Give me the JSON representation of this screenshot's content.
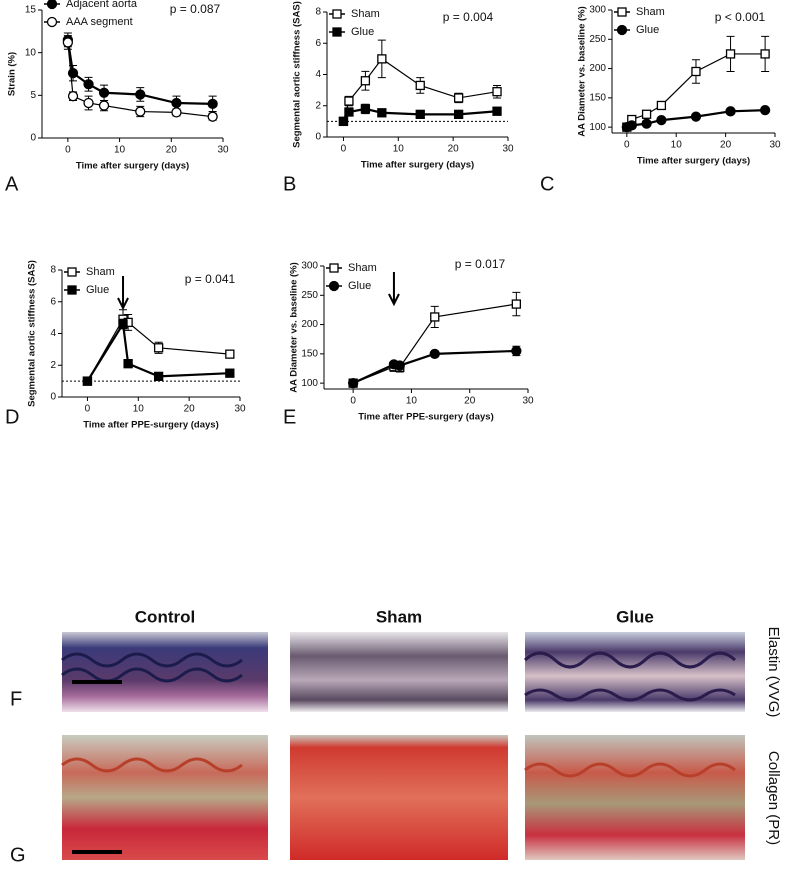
{
  "chart_data": [
    {
      "type": "line",
      "panel": "A",
      "annotation": "p = 0.087",
      "xlabel": "Time after surgery (days)",
      "ylabel": "Strain (%)",
      "x": [
        0,
        1,
        4,
        7,
        14,
        21,
        28
      ],
      "xlim": [
        -5,
        30
      ],
      "xticks": [
        0,
        10,
        20,
        30
      ],
      "ylim": [
        0,
        15
      ],
      "yticks": [
        0,
        5,
        10,
        15
      ],
      "series": [
        {
          "name": "Adjacent aorta",
          "color": "#000000",
          "marker": "circle",
          "filled": true,
          "values": [
            11.5,
            7.6,
            6.3,
            5.3,
            5.1,
            4.1,
            4.0
          ],
          "errors": [
            0.8,
            0.9,
            0.8,
            0.9,
            0.8,
            0.8,
            0.9
          ]
        },
        {
          "name": "AAA segment",
          "color": "#000000",
          "marker": "circle",
          "filled": false,
          "values": [
            11.2,
            4.9,
            4.1,
            3.8,
            3.1,
            3.0,
            2.5
          ],
          "errors": [
            0.8,
            0.5,
            0.8,
            0.6,
            0.6,
            0.4,
            0.4
          ]
        }
      ]
    },
    {
      "type": "line",
      "panel": "B",
      "annotation": "p = 0.004",
      "xlabel": "Time after surgery (days)",
      "ylabel": "Segmental aortic stiffness (SAS)",
      "x": [
        0,
        1,
        4,
        7,
        14,
        21,
        28
      ],
      "xlim": [
        -3,
        30
      ],
      "xticks": [
        0,
        10,
        20,
        30
      ],
      "ylim": [
        0,
        8
      ],
      "yticks": [
        0,
        2,
        4,
        6,
        8
      ],
      "ref_line": 1,
      "series": [
        {
          "name": "Sham",
          "color": "#000000",
          "marker": "square",
          "filled": false,
          "values": [
            1.0,
            2.3,
            3.6,
            5.0,
            3.3,
            2.5,
            2.9
          ],
          "errors": [
            0.1,
            0.3,
            0.6,
            1.2,
            0.5,
            0.3,
            0.4
          ]
        },
        {
          "name": "Glue",
          "color": "#000000",
          "marker": "square",
          "filled": true,
          "values": [
            1.0,
            1.6,
            1.8,
            1.55,
            1.45,
            1.45,
            1.65
          ],
          "errors": [
            0.1,
            0.2,
            0.3,
            0.15,
            0.15,
            0.2,
            0.25
          ]
        }
      ]
    },
    {
      "type": "line",
      "panel": "C",
      "annotation": "p < 0.001",
      "xlabel": "Time after surgery (days)",
      "ylabel": "AA Diameter vs. baseline (%)",
      "x": [
        0,
        1,
        4,
        7,
        14,
        21,
        28
      ],
      "xlim": [
        -3,
        30
      ],
      "xticks": [
        0,
        10,
        20,
        30
      ],
      "ylim": [
        90,
        300
      ],
      "yticks": [
        100,
        150,
        200,
        250,
        300
      ],
      "series": [
        {
          "name": "Sham",
          "color": "#000000",
          "marker": "square",
          "filled": false,
          "values": [
            100,
            113,
            122,
            137,
            195,
            225,
            225
          ],
          "errors": [
            5,
            5,
            5,
            5,
            20,
            30,
            30
          ]
        },
        {
          "name": "Glue",
          "color": "#000000",
          "marker": "circle",
          "filled": true,
          "values": [
            100,
            103,
            106,
            112,
            118,
            127,
            129
          ],
          "errors": [
            3,
            3,
            3,
            3,
            3,
            3,
            3
          ]
        }
      ]
    },
    {
      "type": "line",
      "panel": "D",
      "annotation": "p = 0.041",
      "xlabel": "Time after PPE-surgery (days)",
      "ylabel": "Segmental aortic stiffness (SAS)",
      "x": [
        0,
        7,
        8,
        14,
        28
      ],
      "xlim": [
        -5,
        30
      ],
      "xticks": [
        0,
        10,
        20,
        30
      ],
      "ylim": [
        0,
        8
      ],
      "yticks": [
        0,
        2,
        4,
        6,
        8
      ],
      "ref_line": 1,
      "arrow_x": 7,
      "series": [
        {
          "name": "Sham",
          "color": "#000000",
          "marker": "square",
          "filled": false,
          "values": [
            1.0,
            4.9,
            4.7,
            3.1,
            2.7
          ],
          "errors": [
            0.1,
            0.6,
            0.5,
            0.35,
            0.2
          ]
        },
        {
          "name": "Glue",
          "color": "#000000",
          "marker": "square",
          "filled": true,
          "values": [
            1.0,
            4.6,
            2.1,
            1.3,
            1.5
          ],
          "errors": [
            0.1,
            0.3,
            0.25,
            0.1,
            0.1
          ]
        }
      ]
    },
    {
      "type": "line",
      "panel": "E",
      "annotation": "p = 0.017",
      "xlabel": "Time after PPE-surgery (days)",
      "ylabel": "AA Diameter vs. baseline (%)",
      "x": [
        0,
        7,
        8,
        14,
        28
      ],
      "xlim": [
        -5,
        30
      ],
      "xticks": [
        0,
        10,
        20,
        30
      ],
      "ylim": [
        90,
        300
      ],
      "yticks": [
        100,
        150,
        200,
        250,
        300
      ],
      "arrow_x": 7,
      "series": [
        {
          "name": "Sham",
          "color": "#000000",
          "marker": "square",
          "filled": false,
          "values": [
            100,
            128,
            127,
            213,
            235
          ],
          "errors": [
            3,
            8,
            8,
            18,
            20
          ]
        },
        {
          "name": "Glue",
          "color": "#000000",
          "marker": "circle",
          "filled": true,
          "values": [
            100,
            132,
            130,
            150,
            155
          ],
          "errors": [
            3,
            5,
            5,
            3,
            8
          ]
        }
      ]
    }
  ],
  "histology": {
    "columns": [
      "Control",
      "Sham",
      "Glue"
    ],
    "rows": [
      "Elastin (VVG)",
      "Collagen (PR)"
    ],
    "panels": [
      "F",
      "G"
    ]
  }
}
